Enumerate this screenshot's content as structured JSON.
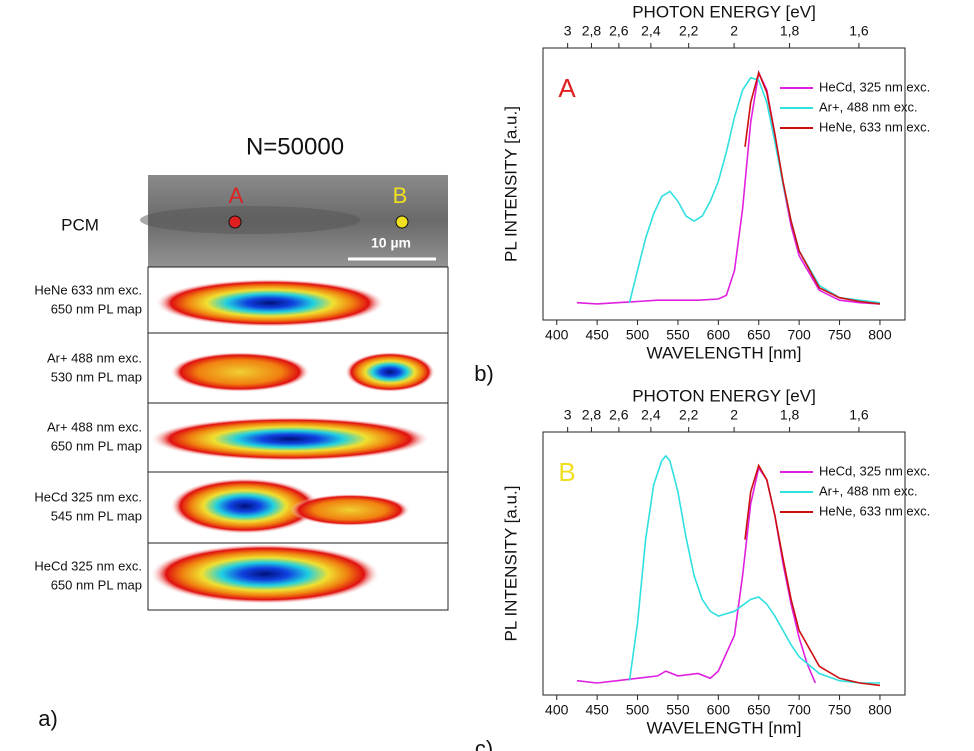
{
  "panel_a": {
    "label": "a)",
    "title": "N=50000",
    "pcm_label": "PCM",
    "point_a": "A",
    "point_b": "B",
    "scale_bar": "10 µm",
    "maps": [
      {
        "lines": [
          "HeNe 633 nm exc.",
          "650 nm PL map"
        ]
      },
      {
        "lines": [
          "Ar+ 488 nm exc.",
          "530 nm PL map"
        ]
      },
      {
        "lines": [
          "Ar+ 488 nm exc.",
          "650 nm PL map"
        ]
      },
      {
        "lines": [
          "HeCd 325 nm exc.",
          "545 nm PL map"
        ]
      },
      {
        "lines": [
          "HeCd 325 nm exc.",
          "650 nm PL map"
        ]
      }
    ]
  },
  "chart_data": [
    {
      "type": "line",
      "panel_label": "b)",
      "tag": "A",
      "tag_color": "#e02020",
      "xlabel": "WAVELENGTH [nm]",
      "x2label": "PHOTON ENERGY [eV]",
      "ylabel": "PL INTENSITY [a.u.]",
      "xlim": [
        383,
        831
      ],
      "xticks": [
        400,
        450,
        500,
        550,
        600,
        650,
        700,
        750,
        800
      ],
      "x2scale": "reciprocal",
      "x2lim": [
        3.24,
        1.49
      ],
      "x2ticks": [
        3,
        {
          "value": 2.8,
          "label": "2,8"
        },
        {
          "value": 2.6,
          "label": "2,6"
        },
        {
          "value": 2.4,
          "label": "2,4"
        },
        {
          "value": 2.2,
          "label": "2,2"
        },
        2,
        {
          "value": 1.8,
          "label": "1,8"
        },
        {
          "value": 1.6,
          "label": "1,6"
        }
      ],
      "ylim": [
        0,
        1.1
      ],
      "series": [
        {
          "name": "HeCd, 325 nm exc.",
          "color": "#e020e0",
          "x": [
            425,
            450,
            475,
            500,
            525,
            550,
            575,
            600,
            610,
            620,
            630,
            640,
            650,
            660,
            670,
            680,
            690,
            700,
            725,
            750,
            775,
            800
          ],
          "values": [
            0.07,
            0.065,
            0.07,
            0.075,
            0.08,
            0.08,
            0.08,
            0.085,
            0.1,
            0.2,
            0.45,
            0.8,
            1.0,
            0.93,
            0.75,
            0.55,
            0.38,
            0.26,
            0.12,
            0.08,
            0.07,
            0.065
          ]
        },
        {
          "name": "Ar+, 488 nm exc.",
          "color": "#30e0e0",
          "x": [
            490,
            500,
            510,
            520,
            530,
            540,
            550,
            560,
            570,
            580,
            590,
            600,
            610,
            620,
            630,
            640,
            650,
            660,
            670,
            680,
            690,
            700,
            725,
            750,
            775,
            800
          ],
          "values": [
            0.07,
            0.2,
            0.33,
            0.43,
            0.5,
            0.52,
            0.48,
            0.42,
            0.4,
            0.42,
            0.48,
            0.56,
            0.68,
            0.82,
            0.93,
            0.98,
            0.97,
            0.88,
            0.72,
            0.55,
            0.4,
            0.28,
            0.14,
            0.09,
            0.08,
            0.07
          ]
        },
        {
          "name": "HeNe, 633 nm exc.",
          "color": "#cc1010",
          "x": [
            633,
            640,
            650,
            660,
            670,
            680,
            690,
            700,
            725,
            750,
            775,
            800
          ],
          "values": [
            0.7,
            0.88,
            1.0,
            0.92,
            0.75,
            0.56,
            0.4,
            0.28,
            0.13,
            0.09,
            0.075,
            0.065
          ]
        }
      ]
    },
    {
      "type": "line",
      "panel_label": "c)",
      "tag": "B",
      "tag_color": "#f0e020",
      "xlabel": "WAVELENGTH [nm]",
      "x2label": "PHOTON ENERGY [eV]",
      "ylabel": "PL INTENSITY [a.u.]",
      "xlim": [
        383,
        831
      ],
      "xticks": [
        400,
        450,
        500,
        550,
        600,
        650,
        700,
        750,
        800
      ],
      "x2scale": "reciprocal",
      "x2lim": [
        3.24,
        1.49
      ],
      "x2ticks": [
        3,
        {
          "value": 2.8,
          "label": "2,8"
        },
        {
          "value": 2.6,
          "label": "2,6"
        },
        {
          "value": 2.4,
          "label": "2,4"
        },
        {
          "value": 2.2,
          "label": "2,2"
        },
        2,
        {
          "value": 1.8,
          "label": "1,8"
        },
        {
          "value": 1.6,
          "label": "1,6"
        }
      ],
      "ylim": [
        0,
        1.1
      ],
      "series": [
        {
          "name": "HeCd, 325 nm exc.",
          "color": "#e020e0",
          "x": [
            425,
            450,
            475,
            500,
            525,
            535,
            550,
            575,
            590,
            600,
            620,
            630,
            640,
            650,
            660,
            670,
            680,
            690,
            700,
            710,
            720
          ],
          "values": [
            0.06,
            0.05,
            0.06,
            0.07,
            0.08,
            0.1,
            0.08,
            0.09,
            0.07,
            0.1,
            0.25,
            0.5,
            0.8,
            0.95,
            0.9,
            0.75,
            0.55,
            0.38,
            0.24,
            0.13,
            0.05
          ]
        },
        {
          "name": "Ar+, 488 nm exc.",
          "color": "#30e0e0",
          "x": [
            490,
            500,
            510,
            520,
            530,
            535,
            540,
            550,
            560,
            570,
            580,
            590,
            600,
            620,
            640,
            650,
            660,
            670,
            680,
            690,
            700,
            725,
            750,
            775,
            800
          ],
          "values": [
            0.06,
            0.3,
            0.65,
            0.88,
            0.98,
            1.0,
            0.98,
            0.85,
            0.66,
            0.5,
            0.4,
            0.35,
            0.33,
            0.35,
            0.4,
            0.41,
            0.38,
            0.33,
            0.27,
            0.21,
            0.16,
            0.09,
            0.06,
            0.05,
            0.05
          ]
        },
        {
          "name": "HeNe, 633 nm exc.",
          "color": "#cc1010",
          "x": [
            633,
            640,
            650,
            660,
            670,
            680,
            690,
            700,
            725,
            750,
            775,
            800
          ],
          "values": [
            0.65,
            0.85,
            0.96,
            0.9,
            0.75,
            0.57,
            0.4,
            0.27,
            0.12,
            0.07,
            0.05,
            0.04
          ]
        }
      ]
    }
  ]
}
